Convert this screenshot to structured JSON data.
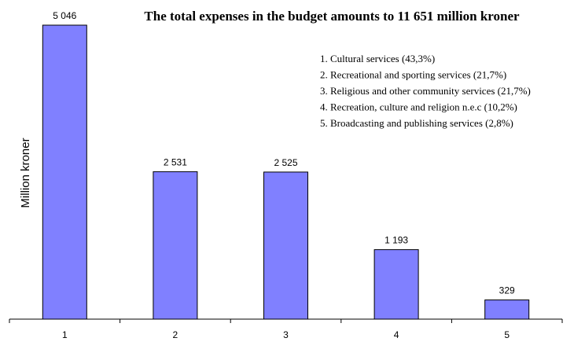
{
  "chart_data": {
    "type": "bar",
    "title": "The total expenses in the budget amounts to 11 651 million kroner",
    "ylabel": "Million kroner",
    "xlabel": "",
    "categories": [
      "1",
      "2",
      "3",
      "4",
      "5"
    ],
    "values": [
      5046,
      2531,
      2525,
      1193,
      329
    ],
    "value_labels": [
      "5 046",
      "2 531",
      "2 525",
      "1 193",
      "329"
    ],
    "ylim": [
      0,
      5200
    ],
    "grid": false,
    "legend_position": "top-right",
    "legend": [
      "1.  Cultural services (43,3%)",
      "2.  Recreational and sporting services (21,7%)",
      "3.  Religious and other community services (21,7%)",
      "4.  Recreation, culture and religion n.e.c (10,2%)",
      "5.  Broadcasting and publishing services (2,8%)"
    ],
    "colors": {
      "bar_fill": "#8080ff",
      "bar_stroke": "#000000",
      "axis": "#000000"
    }
  }
}
